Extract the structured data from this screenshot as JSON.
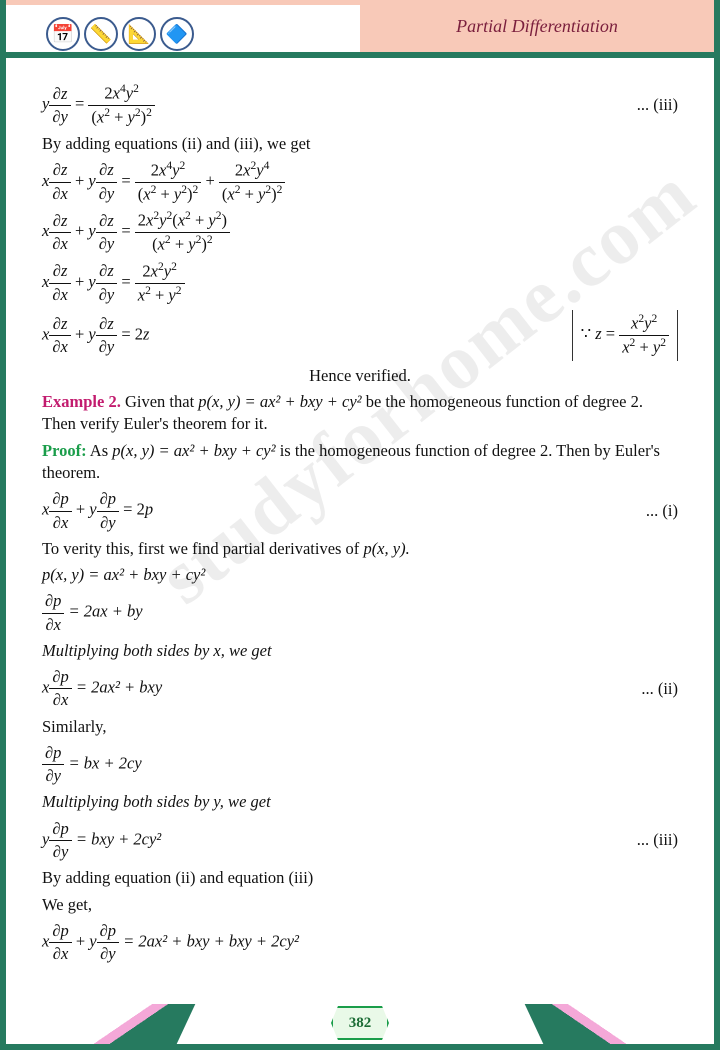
{
  "header": {
    "title": "Partial Differentiation"
  },
  "watermark": "studyforhome.com",
  "page_number": "382",
  "eq3_label": "... (iii)",
  "line_adding": "By adding equations (ii) and (iii), we get",
  "hence": "Hence verified.",
  "example2_label": "Example 2.",
  "example2_text1": " Given that ",
  "example2_func": "p(x, y) = ax² + bxy + cy²",
  "example2_text2": " be the homogeneous function of degree 2. Then verify Euler's theorem for it.",
  "proof_label": "Proof:",
  "proof_text1": "  As ",
  "proof_func": "p(x, y) = ax² + bxy + cy²",
  "proof_text2": " is the homogeneous function of degree 2. Then by Euler's theorem.",
  "eq_i_label": "... (i)",
  "line_verity": "To verity this, first we find partial derivatives of ",
  "line_verity_func": "p(x, y).",
  "def_p": "p(x, y) = ax² + bxy + cy²",
  "dpdx": " = 2ax + by",
  "mult_x": "Multiplying both sides by x, we get",
  "eq_ii_rhs": " = 2ax² + bxy",
  "eq_ii_label": "... (ii)",
  "similarly": "Similarly,",
  "dpdy": " = bx + 2cy",
  "mult_y": "Multiplying both sides by y, we get",
  "eq_iii_rhs": " = bxy + 2cy²",
  "eq_iii_label": "... (iii)",
  "adding23": "By adding equation (ii) and equation (iii)",
  "weget": "We get,",
  "final_rhs": " = 2ax² + bxy + bxy + 2cy²"
}
